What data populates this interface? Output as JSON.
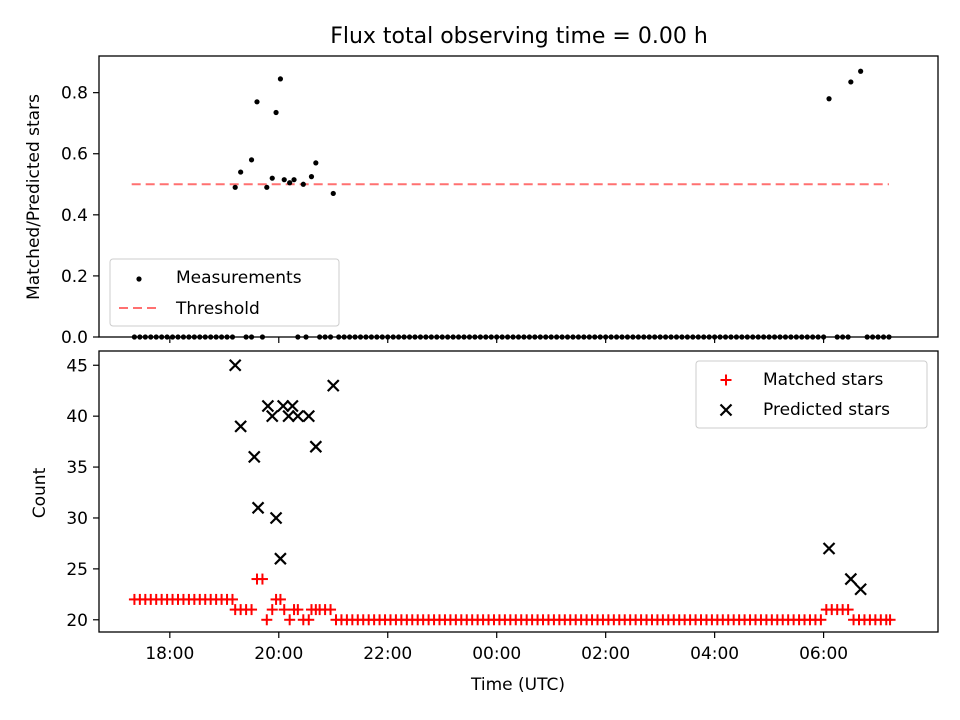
{
  "chart_data": [
    {
      "type": "scatter",
      "title": "Flux total observing time = 0.00 h",
      "ylabel": "Matched/Predicted stars",
      "xlabel": "",
      "ylim": [
        0.0,
        0.92
      ],
      "yticks": [
        0.0,
        0.2,
        0.4,
        0.6,
        0.8
      ],
      "ytick_labels": [
        "0.0",
        "0.2",
        "0.4",
        "0.6",
        "0.8"
      ],
      "legend_position": "lower-left",
      "colors": {
        "measurements": "#000000",
        "threshold": "#ff7070"
      },
      "threshold": {
        "name": "Threshold",
        "value": 0.5,
        "x_range": [
          17.3,
          31.2
        ]
      },
      "series": [
        {
          "name": "Measurements",
          "points": [
            [
              19.2,
              0.49
            ],
            [
              19.3,
              0.54
            ],
            [
              19.5,
              0.58
            ],
            [
              19.6,
              0.77
            ],
            [
              19.78,
              0.49
            ],
            [
              19.88,
              0.52
            ],
            [
              19.95,
              0.735
            ],
            [
              20.03,
              0.845
            ],
            [
              20.1,
              0.515
            ],
            [
              20.2,
              0.505
            ],
            [
              20.28,
              0.515
            ],
            [
              20.45,
              0.5
            ],
            [
              20.6,
              0.525
            ],
            [
              20.68,
              0.57
            ],
            [
              21.0,
              0.47
            ],
            [
              30.1,
              0.78
            ],
            [
              30.5,
              0.835
            ],
            [
              30.68,
              0.87
            ]
          ],
          "zero_x": [
            17.35,
            17.45,
            17.55,
            17.65,
            17.75,
            17.85,
            17.95,
            18.05,
            18.15,
            18.25,
            18.35,
            18.45,
            18.55,
            18.65,
            18.75,
            18.85,
            18.95,
            19.05,
            19.15,
            19.4,
            19.5,
            19.7,
            20.35,
            20.5,
            20.75,
            20.85,
            20.95,
            21.1,
            21.2,
            21.3,
            21.4,
            21.5,
            21.6,
            21.7,
            21.8,
            21.9,
            22.0,
            22.1,
            22.2,
            22.3,
            22.4,
            22.5,
            22.6,
            22.7,
            22.8,
            22.9,
            23.0,
            23.1,
            23.2,
            23.3,
            23.4,
            23.5,
            23.6,
            23.7,
            23.8,
            23.9,
            24.0,
            24.1,
            24.2,
            24.3,
            24.4,
            24.5,
            24.6,
            24.7,
            24.8,
            24.9,
            25.0,
            25.1,
            25.2,
            25.3,
            25.4,
            25.5,
            25.6,
            25.7,
            25.8,
            25.9,
            26.0,
            26.1,
            26.2,
            26.3,
            26.4,
            26.5,
            26.6,
            26.7,
            26.8,
            26.9,
            27.0,
            27.1,
            27.2,
            27.3,
            27.4,
            27.5,
            27.6,
            27.7,
            27.8,
            27.9,
            28.0,
            28.1,
            28.2,
            28.3,
            28.4,
            28.5,
            28.6,
            28.7,
            28.8,
            28.9,
            29.0,
            29.1,
            29.2,
            29.3,
            29.4,
            29.5,
            29.6,
            29.7,
            29.8,
            29.9,
            30.0,
            30.25,
            30.35,
            30.45,
            30.8,
            30.9,
            31.0,
            31.1,
            31.2
          ]
        }
      ]
    },
    {
      "type": "scatter",
      "title": "",
      "xlabel": "Time (UTC)",
      "ylabel": "Count",
      "xlim": [
        16.7,
        32.1
      ],
      "ylim": [
        18.8,
        46.4
      ],
      "xticks": [
        18,
        20,
        22,
        24,
        26,
        28,
        30
      ],
      "xtick_labels": [
        "18:00",
        "20:00",
        "22:00",
        "00:00",
        "02:00",
        "04:00",
        "06:00"
      ],
      "yticks": [
        20,
        25,
        30,
        35,
        40,
        45
      ],
      "ytick_labels": [
        "20",
        "25",
        "30",
        "35",
        "40",
        "45"
      ],
      "legend_position": "top-right",
      "colors": {
        "matched": "#ff0000",
        "predicted": "#000000"
      },
      "series": [
        {
          "name": "Matched stars",
          "marker": "plus",
          "points": [
            [
              17.35,
              22
            ],
            [
              17.45,
              22
            ],
            [
              17.55,
              22
            ],
            [
              17.65,
              22
            ],
            [
              17.75,
              22
            ],
            [
              17.85,
              22
            ],
            [
              17.95,
              22
            ],
            [
              18.05,
              22
            ],
            [
              18.15,
              22
            ],
            [
              18.25,
              22
            ],
            [
              18.35,
              22
            ],
            [
              18.45,
              22
            ],
            [
              18.55,
              22
            ],
            [
              18.65,
              22
            ],
            [
              18.75,
              22
            ],
            [
              18.85,
              22
            ],
            [
              18.95,
              22
            ],
            [
              19.05,
              22
            ],
            [
              19.15,
              22
            ],
            [
              19.2,
              21
            ],
            [
              19.3,
              21
            ],
            [
              19.4,
              21
            ],
            [
              19.5,
              21
            ],
            [
              19.6,
              24
            ],
            [
              19.7,
              24
            ],
            [
              19.78,
              20
            ],
            [
              19.88,
              21
            ],
            [
              19.95,
              22
            ],
            [
              20.03,
              22
            ],
            [
              20.1,
              21
            ],
            [
              20.2,
              20
            ],
            [
              20.28,
              21
            ],
            [
              20.35,
              21
            ],
            [
              20.45,
              20
            ],
            [
              20.55,
              20
            ],
            [
              20.6,
              21
            ],
            [
              20.68,
              21
            ],
            [
              20.75,
              21
            ],
            [
              20.85,
              21
            ],
            [
              20.95,
              21
            ],
            [
              21.05,
              20
            ],
            [
              21.15,
              20
            ],
            [
              21.25,
              20
            ],
            [
              21.35,
              20
            ],
            [
              21.45,
              20
            ],
            [
              21.55,
              20
            ],
            [
              21.65,
              20
            ],
            [
              21.75,
              20
            ],
            [
              21.85,
              20
            ],
            [
              21.95,
              20
            ],
            [
              22.05,
              20
            ],
            [
              22.15,
              20
            ],
            [
              22.25,
              20
            ],
            [
              22.35,
              20
            ],
            [
              22.45,
              20
            ],
            [
              22.55,
              20
            ],
            [
              22.65,
              20
            ],
            [
              22.75,
              20
            ],
            [
              22.85,
              20
            ],
            [
              22.95,
              20
            ],
            [
              23.05,
              20
            ],
            [
              23.15,
              20
            ],
            [
              23.25,
              20
            ],
            [
              23.35,
              20
            ],
            [
              23.45,
              20
            ],
            [
              23.55,
              20
            ],
            [
              23.65,
              20
            ],
            [
              23.75,
              20
            ],
            [
              23.85,
              20
            ],
            [
              23.95,
              20
            ],
            [
              24.05,
              20
            ],
            [
              24.15,
              20
            ],
            [
              24.25,
              20
            ],
            [
              24.35,
              20
            ],
            [
              24.45,
              20
            ],
            [
              24.55,
              20
            ],
            [
              24.65,
              20
            ],
            [
              24.75,
              20
            ],
            [
              24.85,
              20
            ],
            [
              24.95,
              20
            ],
            [
              25.05,
              20
            ],
            [
              25.15,
              20
            ],
            [
              25.25,
              20
            ],
            [
              25.35,
              20
            ],
            [
              25.45,
              20
            ],
            [
              25.55,
              20
            ],
            [
              25.65,
              20
            ],
            [
              25.75,
              20
            ],
            [
              25.85,
              20
            ],
            [
              25.95,
              20
            ],
            [
              26.05,
              20
            ],
            [
              26.15,
              20
            ],
            [
              26.25,
              20
            ],
            [
              26.35,
              20
            ],
            [
              26.45,
              20
            ],
            [
              26.55,
              20
            ],
            [
              26.65,
              20
            ],
            [
              26.75,
              20
            ],
            [
              26.85,
              20
            ],
            [
              26.95,
              20
            ],
            [
              27.05,
              20
            ],
            [
              27.15,
              20
            ],
            [
              27.25,
              20
            ],
            [
              27.35,
              20
            ],
            [
              27.45,
              20
            ],
            [
              27.55,
              20
            ],
            [
              27.65,
              20
            ],
            [
              27.75,
              20
            ],
            [
              27.85,
              20
            ],
            [
              27.95,
              20
            ],
            [
              28.05,
              20
            ],
            [
              28.15,
              20
            ],
            [
              28.25,
              20
            ],
            [
              28.35,
              20
            ],
            [
              28.45,
              20
            ],
            [
              28.55,
              20
            ],
            [
              28.65,
              20
            ],
            [
              28.75,
              20
            ],
            [
              28.85,
              20
            ],
            [
              28.95,
              20
            ],
            [
              29.05,
              20
            ],
            [
              29.15,
              20
            ],
            [
              29.25,
              20
            ],
            [
              29.35,
              20
            ],
            [
              29.45,
              20
            ],
            [
              29.55,
              20
            ],
            [
              29.65,
              20
            ],
            [
              29.75,
              20
            ],
            [
              29.85,
              20
            ],
            [
              29.95,
              20
            ],
            [
              30.05,
              21
            ],
            [
              30.15,
              21
            ],
            [
              30.25,
              21
            ],
            [
              30.35,
              21
            ],
            [
              30.45,
              21
            ],
            [
              30.55,
              20
            ],
            [
              30.65,
              20
            ],
            [
              30.75,
              20
            ],
            [
              30.85,
              20
            ],
            [
              30.95,
              20
            ],
            [
              31.05,
              20
            ],
            [
              31.15,
              20
            ],
            [
              31.22,
              20
            ]
          ]
        },
        {
          "name": "Predicted stars",
          "marker": "x",
          "points": [
            [
              19.2,
              45
            ],
            [
              19.3,
              39
            ],
            [
              19.55,
              36
            ],
            [
              19.62,
              31
            ],
            [
              19.8,
              41
            ],
            [
              19.88,
              40
            ],
            [
              19.95,
              30
            ],
            [
              20.03,
              26
            ],
            [
              20.08,
              41
            ],
            [
              20.18,
              40
            ],
            [
              20.25,
              41
            ],
            [
              20.35,
              40
            ],
            [
              20.55,
              40
            ],
            [
              20.68,
              37
            ],
            [
              21.0,
              43
            ],
            [
              30.1,
              27
            ],
            [
              30.5,
              24
            ],
            [
              30.68,
              23
            ]
          ]
        }
      ]
    }
  ]
}
